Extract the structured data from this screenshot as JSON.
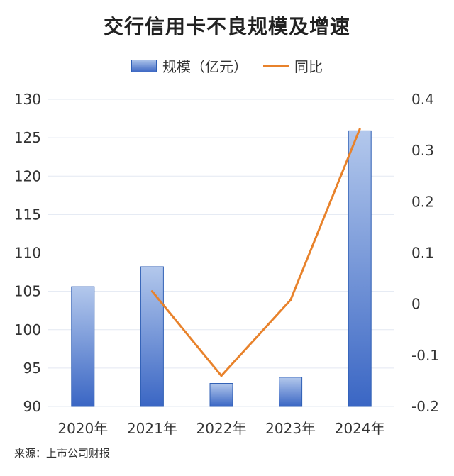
{
  "title": "交行信用卡不良规模及增速",
  "legend": {
    "bar_label": "规模（亿元）",
    "line_label": "同比"
  },
  "source": "来源：上市公司财报",
  "colors": {
    "bar_top": "#b3c8ec",
    "bar_bottom": "#3a66c4",
    "bar_stroke": "#2f5fb5",
    "line": "#e8822b",
    "grid": "#e3e8f2"
  },
  "chart_data": {
    "type": "bar",
    "categories": [
      "2020年",
      "2021年",
      "2022年",
      "2023年",
      "2024年"
    ],
    "series": [
      {
        "name": "规模（亿元）",
        "type": "bar",
        "axis": "left",
        "values": [
          105.6,
          108.2,
          93.0,
          93.8,
          125.9
        ]
      },
      {
        "name": "同比",
        "type": "line",
        "axis": "right",
        "values": [
          null,
          0.025,
          -0.14,
          0.008,
          0.342
        ]
      }
    ],
    "ylim_left": [
      90,
      130
    ],
    "yticks_left": [
      "90",
      "95",
      "100",
      "105",
      "110",
      "115",
      "120",
      "125",
      "130"
    ],
    "ylim_right": [
      -0.2,
      0.4
    ],
    "yticks_right": [
      "-0.2",
      "-0.1",
      "0",
      "0.1",
      "0.2",
      "0.3",
      "0.4"
    ],
    "grid": true,
    "legend_position": "top-center"
  }
}
